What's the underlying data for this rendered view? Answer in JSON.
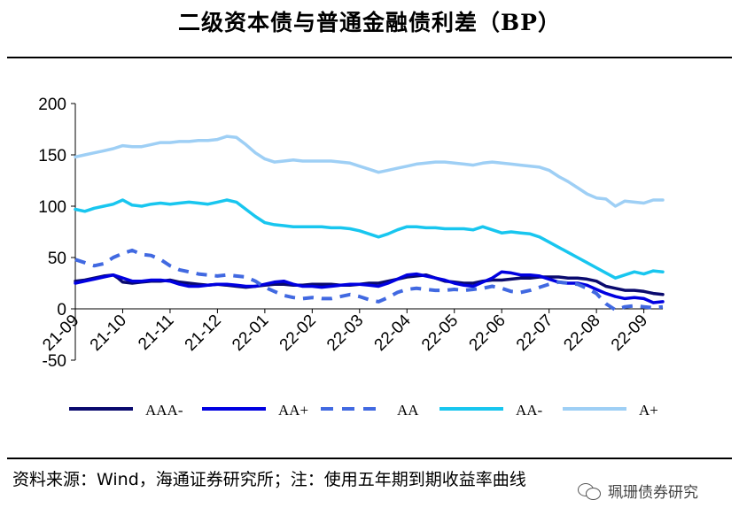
{
  "title": "二级资本债与普通金融债利差（BP）",
  "source_note": "资料来源：Wind，海通证券研究所；注：使用五年期到期收益率曲线",
  "watermark": "珮珊债券研究",
  "chart_data": {
    "type": "line",
    "title": "二级资本债与普通金融债利差（BP）",
    "xlabel": "",
    "ylabel": "",
    "ylim": [
      -50,
      200
    ],
    "yticks": [
      -50,
      0,
      50,
      100,
      150,
      200
    ],
    "x_tick_labels": [
      "21-09",
      "21-10",
      "21-11",
      "21-12",
      "22-01",
      "22-02",
      "22-03",
      "22-04",
      "22-05",
      "22-06",
      "22-07",
      "22-08",
      "22-09"
    ],
    "x_index_range": [
      0,
      12.4
    ],
    "legend_position": "bottom",
    "series": [
      {
        "name": "AAA-",
        "color": "#0a0a6e",
        "dash": "solid",
        "points": [
          [
            0,
            27
          ],
          [
            0.2,
            28
          ],
          [
            0.4,
            30
          ],
          [
            0.6,
            32
          ],
          [
            0.8,
            33
          ],
          [
            0.9,
            30
          ],
          [
            1.0,
            26
          ],
          [
            1.2,
            25
          ],
          [
            1.4,
            26
          ],
          [
            1.6,
            27
          ],
          [
            1.8,
            27
          ],
          [
            2.0,
            28
          ],
          [
            2.2,
            26
          ],
          [
            2.4,
            25
          ],
          [
            2.6,
            24
          ],
          [
            2.8,
            23
          ],
          [
            3.0,
            24
          ],
          [
            3.2,
            23
          ],
          [
            3.4,
            22
          ],
          [
            3.6,
            21
          ],
          [
            3.8,
            22
          ],
          [
            4.0,
            23
          ],
          [
            4.2,
            24
          ],
          [
            4.4,
            24
          ],
          [
            4.6,
            23
          ],
          [
            4.8,
            23
          ],
          [
            5.0,
            24
          ],
          [
            5.2,
            24
          ],
          [
            5.4,
            24
          ],
          [
            5.6,
            23
          ],
          [
            5.8,
            23
          ],
          [
            6.0,
            24
          ],
          [
            6.2,
            25
          ],
          [
            6.4,
            25
          ],
          [
            6.6,
            27
          ],
          [
            6.8,
            29
          ],
          [
            7.0,
            31
          ],
          [
            7.2,
            32
          ],
          [
            7.4,
            33
          ],
          [
            7.6,
            30
          ],
          [
            7.8,
            27
          ],
          [
            8.0,
            26
          ],
          [
            8.2,
            25
          ],
          [
            8.4,
            25
          ],
          [
            8.6,
            27
          ],
          [
            8.8,
            28
          ],
          [
            9.0,
            28
          ],
          [
            9.2,
            29
          ],
          [
            9.4,
            30
          ],
          [
            9.6,
            30
          ],
          [
            9.8,
            31
          ],
          [
            10.0,
            31
          ],
          [
            10.2,
            31
          ],
          [
            10.4,
            30
          ],
          [
            10.6,
            30
          ],
          [
            10.8,
            29
          ],
          [
            11.0,
            27
          ],
          [
            11.2,
            22
          ],
          [
            11.4,
            20
          ],
          [
            11.6,
            18
          ],
          [
            11.8,
            18
          ],
          [
            12.0,
            17
          ],
          [
            12.2,
            15
          ],
          [
            12.4,
            14
          ]
        ]
      },
      {
        "name": "AA+",
        "color": "#0000e0",
        "dash": "solid",
        "points": [
          [
            0,
            25
          ],
          [
            0.2,
            27
          ],
          [
            0.4,
            29
          ],
          [
            0.6,
            31
          ],
          [
            0.8,
            33
          ],
          [
            1.0,
            30
          ],
          [
            1.2,
            27
          ],
          [
            1.4,
            27
          ],
          [
            1.6,
            28
          ],
          [
            1.8,
            28
          ],
          [
            2.0,
            27
          ],
          [
            2.2,
            24
          ],
          [
            2.4,
            22
          ],
          [
            2.6,
            22
          ],
          [
            2.8,
            23
          ],
          [
            3.0,
            24
          ],
          [
            3.2,
            24
          ],
          [
            3.4,
            23
          ],
          [
            3.6,
            22
          ],
          [
            3.8,
            22
          ],
          [
            4.0,
            24
          ],
          [
            4.2,
            26
          ],
          [
            4.4,
            27
          ],
          [
            4.6,
            24
          ],
          [
            4.8,
            22
          ],
          [
            5.0,
            22
          ],
          [
            5.2,
            21
          ],
          [
            5.4,
            22
          ],
          [
            5.6,
            23
          ],
          [
            5.8,
            24
          ],
          [
            6.0,
            24
          ],
          [
            6.2,
            23
          ],
          [
            6.4,
            22
          ],
          [
            6.6,
            25
          ],
          [
            6.8,
            29
          ],
          [
            7.0,
            33
          ],
          [
            7.2,
            34
          ],
          [
            7.4,
            32
          ],
          [
            7.6,
            30
          ],
          [
            7.8,
            28
          ],
          [
            8.0,
            25
          ],
          [
            8.2,
            23
          ],
          [
            8.4,
            22
          ],
          [
            8.6,
            26
          ],
          [
            8.8,
            30
          ],
          [
            9.0,
            36
          ],
          [
            9.2,
            35
          ],
          [
            9.4,
            33
          ],
          [
            9.6,
            33
          ],
          [
            9.8,
            32
          ],
          [
            10.0,
            29
          ],
          [
            10.2,
            26
          ],
          [
            10.4,
            25
          ],
          [
            10.6,
            25
          ],
          [
            10.8,
            23
          ],
          [
            11.0,
            19
          ],
          [
            11.2,
            15
          ],
          [
            11.4,
            12
          ],
          [
            11.6,
            10
          ],
          [
            11.8,
            11
          ],
          [
            12.0,
            10
          ],
          [
            12.2,
            6
          ],
          [
            12.4,
            7
          ]
        ]
      },
      {
        "name": "AA",
        "color": "#4169e1",
        "dash": "dashed",
        "points": [
          [
            0,
            48
          ],
          [
            0.2,
            45
          ],
          [
            0.4,
            42
          ],
          [
            0.6,
            44
          ],
          [
            0.8,
            50
          ],
          [
            1.0,
            54
          ],
          [
            1.2,
            57
          ],
          [
            1.4,
            53
          ],
          [
            1.6,
            52
          ],
          [
            1.8,
            48
          ],
          [
            2.0,
            42
          ],
          [
            2.2,
            38
          ],
          [
            2.4,
            36
          ],
          [
            2.6,
            34
          ],
          [
            2.8,
            33
          ],
          [
            3.0,
            32
          ],
          [
            3.2,
            33
          ],
          [
            3.4,
            32
          ],
          [
            3.6,
            31
          ],
          [
            3.8,
            27
          ],
          [
            4.0,
            21
          ],
          [
            4.2,
            17
          ],
          [
            4.4,
            13
          ],
          [
            4.6,
            11
          ],
          [
            4.8,
            10
          ],
          [
            5.0,
            11
          ],
          [
            5.2,
            10
          ],
          [
            5.4,
            10
          ],
          [
            5.6,
            12
          ],
          [
            5.8,
            14
          ],
          [
            6.0,
            12
          ],
          [
            6.2,
            9
          ],
          [
            6.4,
            7
          ],
          [
            6.6,
            11
          ],
          [
            6.8,
            16
          ],
          [
            7.0,
            19
          ],
          [
            7.2,
            20
          ],
          [
            7.4,
            19
          ],
          [
            7.6,
            18
          ],
          [
            7.8,
            18
          ],
          [
            8.0,
            19
          ],
          [
            8.2,
            18
          ],
          [
            8.4,
            19
          ],
          [
            8.6,
            20
          ],
          [
            8.8,
            22
          ],
          [
            9.0,
            20
          ],
          [
            9.2,
            17
          ],
          [
            9.4,
            16
          ],
          [
            9.6,
            18
          ],
          [
            9.8,
            21
          ],
          [
            10.0,
            24
          ],
          [
            10.2,
            26
          ],
          [
            10.4,
            25
          ],
          [
            10.6,
            24
          ],
          [
            10.8,
            20
          ],
          [
            11.0,
            15
          ],
          [
            11.2,
            5
          ],
          [
            11.4,
            -1
          ],
          [
            11.6,
            2
          ],
          [
            11.8,
            3
          ],
          [
            12.0,
            2
          ],
          [
            12.2,
            1
          ],
          [
            12.4,
            2
          ]
        ]
      },
      {
        "name": "AA-",
        "color": "#18c6ef",
        "dash": "solid",
        "points": [
          [
            0,
            97
          ],
          [
            0.2,
            95
          ],
          [
            0.4,
            98
          ],
          [
            0.6,
            100
          ],
          [
            0.8,
            102
          ],
          [
            1.0,
            106
          ],
          [
            1.2,
            101
          ],
          [
            1.4,
            100
          ],
          [
            1.6,
            102
          ],
          [
            1.8,
            103
          ],
          [
            2.0,
            102
          ],
          [
            2.2,
            103
          ],
          [
            2.4,
            104
          ],
          [
            2.6,
            103
          ],
          [
            2.8,
            102
          ],
          [
            3.0,
            104
          ],
          [
            3.2,
            106
          ],
          [
            3.4,
            104
          ],
          [
            3.6,
            97
          ],
          [
            3.8,
            90
          ],
          [
            4.0,
            84
          ],
          [
            4.2,
            82
          ],
          [
            4.4,
            81
          ],
          [
            4.6,
            80
          ],
          [
            4.8,
            80
          ],
          [
            5.0,
            80
          ],
          [
            5.2,
            80
          ],
          [
            5.4,
            79
          ],
          [
            5.6,
            79
          ],
          [
            5.8,
            78
          ],
          [
            6.0,
            76
          ],
          [
            6.2,
            73
          ],
          [
            6.4,
            70
          ],
          [
            6.6,
            73
          ],
          [
            6.8,
            77
          ],
          [
            7.0,
            80
          ],
          [
            7.2,
            80
          ],
          [
            7.4,
            79
          ],
          [
            7.6,
            79
          ],
          [
            7.8,
            78
          ],
          [
            8.0,
            78
          ],
          [
            8.2,
            78
          ],
          [
            8.4,
            77
          ],
          [
            8.6,
            80
          ],
          [
            8.8,
            77
          ],
          [
            9.0,
            74
          ],
          [
            9.2,
            75
          ],
          [
            9.4,
            74
          ],
          [
            9.6,
            73
          ],
          [
            9.8,
            70
          ],
          [
            10.0,
            65
          ],
          [
            10.2,
            60
          ],
          [
            10.4,
            55
          ],
          [
            10.6,
            50
          ],
          [
            10.8,
            45
          ],
          [
            11.0,
            40
          ],
          [
            11.2,
            35
          ],
          [
            11.4,
            30
          ],
          [
            11.6,
            33
          ],
          [
            11.8,
            36
          ],
          [
            12.0,
            34
          ],
          [
            12.2,
            37
          ],
          [
            12.4,
            36
          ]
        ]
      },
      {
        "name": "A+",
        "color": "#9ecff5",
        "dash": "solid",
        "points": [
          [
            0,
            148
          ],
          [
            0.2,
            150
          ],
          [
            0.4,
            152
          ],
          [
            0.6,
            154
          ],
          [
            0.8,
            156
          ],
          [
            1.0,
            159
          ],
          [
            1.2,
            158
          ],
          [
            1.4,
            158
          ],
          [
            1.6,
            160
          ],
          [
            1.8,
            162
          ],
          [
            2.0,
            162
          ],
          [
            2.2,
            163
          ],
          [
            2.4,
            163
          ],
          [
            2.6,
            164
          ],
          [
            2.8,
            164
          ],
          [
            3.0,
            165
          ],
          [
            3.2,
            168
          ],
          [
            3.4,
            167
          ],
          [
            3.6,
            160
          ],
          [
            3.8,
            152
          ],
          [
            4.0,
            146
          ],
          [
            4.2,
            143
          ],
          [
            4.4,
            144
          ],
          [
            4.6,
            145
          ],
          [
            4.8,
            144
          ],
          [
            5.0,
            144
          ],
          [
            5.2,
            144
          ],
          [
            5.4,
            144
          ],
          [
            5.6,
            143
          ],
          [
            5.8,
            142
          ],
          [
            6.0,
            139
          ],
          [
            6.2,
            136
          ],
          [
            6.4,
            133
          ],
          [
            6.6,
            135
          ],
          [
            6.8,
            137
          ],
          [
            7.0,
            139
          ],
          [
            7.2,
            141
          ],
          [
            7.4,
            142
          ],
          [
            7.6,
            143
          ],
          [
            7.8,
            143
          ],
          [
            8.0,
            142
          ],
          [
            8.2,
            141
          ],
          [
            8.4,
            140
          ],
          [
            8.6,
            142
          ],
          [
            8.8,
            143
          ],
          [
            9.0,
            142
          ],
          [
            9.2,
            141
          ],
          [
            9.4,
            140
          ],
          [
            9.6,
            139
          ],
          [
            9.8,
            138
          ],
          [
            10.0,
            135
          ],
          [
            10.2,
            129
          ],
          [
            10.4,
            124
          ],
          [
            10.6,
            118
          ],
          [
            10.8,
            112
          ],
          [
            11.0,
            108
          ],
          [
            11.2,
            107
          ],
          [
            11.4,
            100
          ],
          [
            11.6,
            105
          ],
          [
            11.8,
            104
          ],
          [
            12.0,
            103
          ],
          [
            12.2,
            106
          ],
          [
            12.4,
            106
          ]
        ]
      }
    ]
  }
}
